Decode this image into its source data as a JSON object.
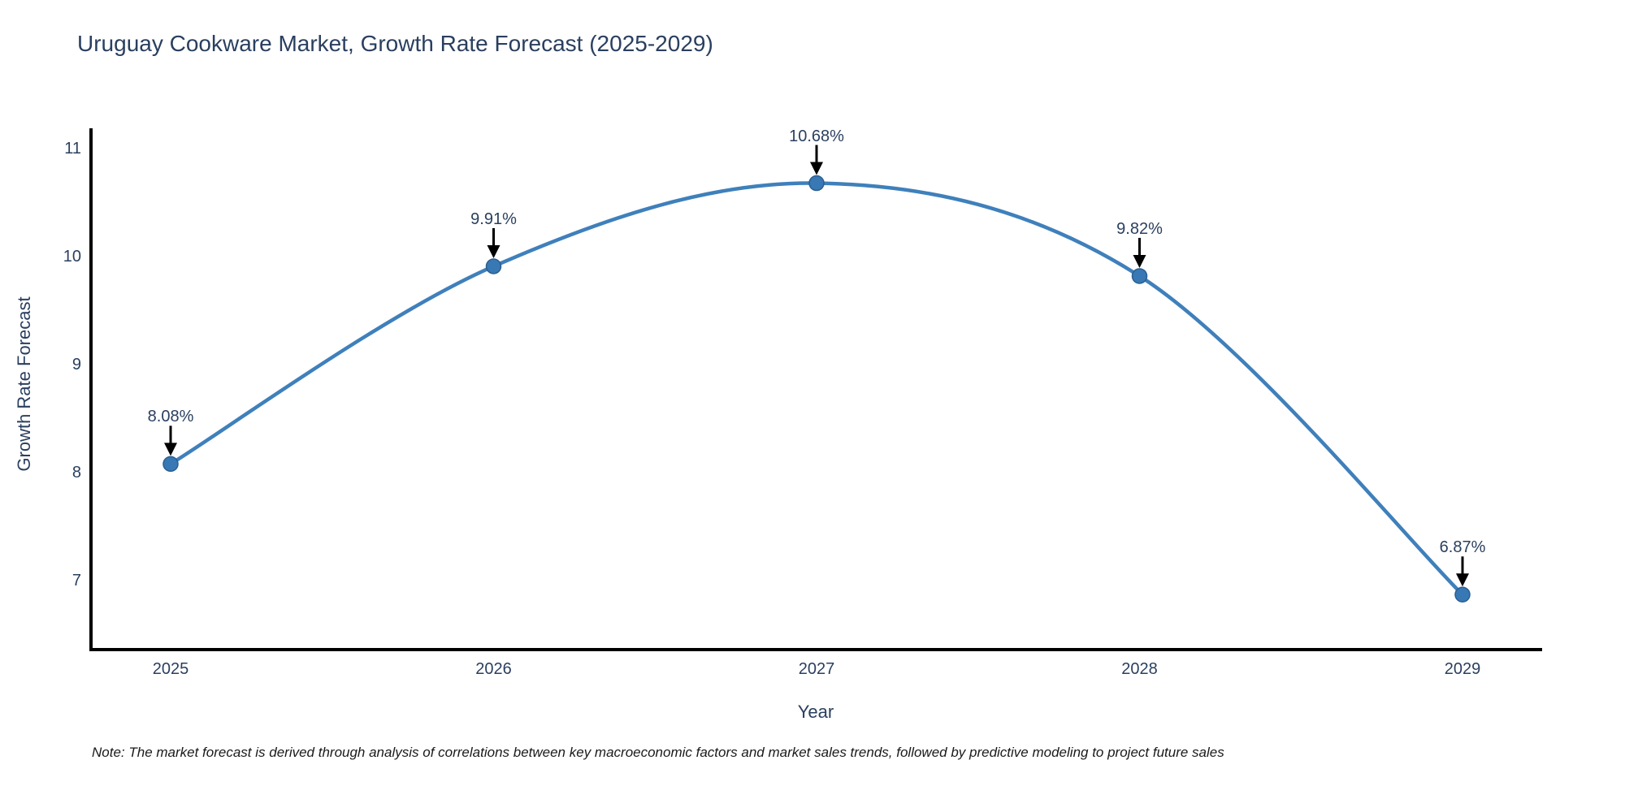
{
  "title": "Uruguay Cookware Market, Growth Rate Forecast (2025-2029)",
  "note": "Note: The market forecast is derived through analysis of correlations between key macroeconomic factors and market sales trends, followed by predictive modeling to project future sales",
  "chart_data": {
    "type": "line",
    "line_shape": "spline",
    "title": "Uruguay Cookware Market, Growth Rate Forecast (2025-2029)",
    "xlabel": "Year",
    "ylabel": "Growth Rate Forecast",
    "x": [
      2025,
      2026,
      2027,
      2028,
      2029
    ],
    "values": [
      8.08,
      9.91,
      10.68,
      9.82,
      6.87
    ],
    "point_labels": [
      "8.08%",
      "9.91%",
      "10.68%",
      "9.82%",
      "6.87%"
    ],
    "yticks": [
      7,
      8,
      9,
      10,
      11
    ],
    "ylim": [
      6.35,
      11.19
    ],
    "grid": false,
    "legend": "none",
    "colors": {
      "line": "#3f80bb",
      "marker_fill": "#3878b5",
      "marker_edge": "#2b5f8e",
      "axis_line": "#000000",
      "text": "#2a3f5f",
      "annotation_arrow": "#000000",
      "note_text": "#1a1a1a"
    }
  }
}
